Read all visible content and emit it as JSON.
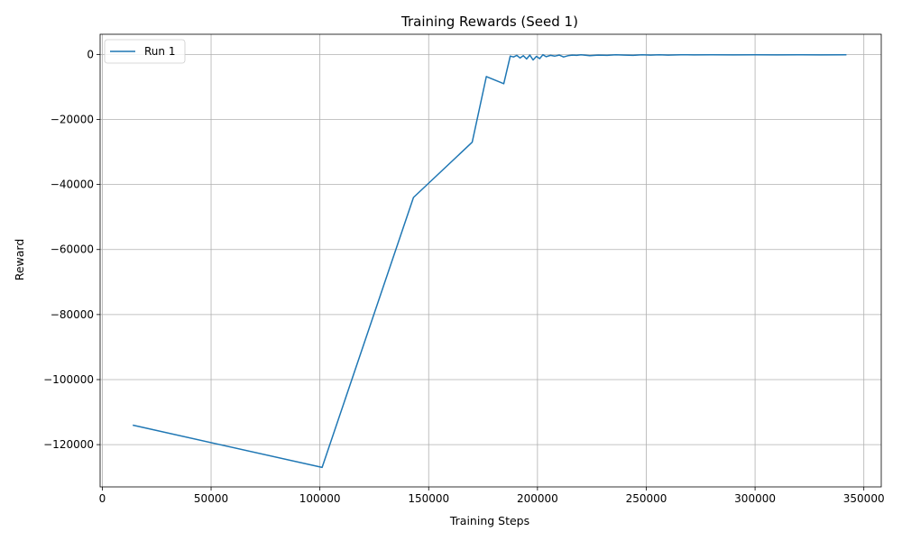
{
  "chart_data": {
    "type": "line",
    "title": "Training Rewards (Seed 1)",
    "xlabel": "Training Steps",
    "ylabel": "Reward",
    "xlim": [
      -1000,
      358000
    ],
    "ylim": [
      -133000,
      6200
    ],
    "xticks": [
      0,
      50000,
      100000,
      150000,
      200000,
      250000,
      300000,
      350000
    ],
    "xtick_labels": [
      "0",
      "50000",
      "100000",
      "150000",
      "200000",
      "250000",
      "300000",
      "350000"
    ],
    "yticks": [
      0,
      -20000,
      -40000,
      -60000,
      -80000,
      -100000,
      -120000
    ],
    "ytick_labels": [
      "0",
      "−20000",
      "−40000",
      "−60000",
      "−80000",
      "−100000",
      "−120000"
    ],
    "grid": true,
    "legend_position": "upper-left",
    "color": "#1f77b4",
    "series": [
      {
        "name": "Run 1",
        "x": [
          14000,
          101000,
          143000,
          170000,
          176500,
          184500,
          187500,
          189000,
          190500,
          192000,
          193500,
          195000,
          196500,
          198000,
          199500,
          201000,
          202500,
          204000,
          206000,
          208000,
          210000,
          212000,
          214000,
          216000,
          218000,
          220000,
          224000,
          228000,
          232000,
          236000,
          240000,
          244000,
          248000,
          252000,
          256000,
          260000,
          266000,
          272000,
          280000,
          290000,
          300000,
          310000,
          320000,
          330000,
          342000
        ],
        "y": [
          -114000,
          -127000,
          -44000,
          -27000,
          -6800,
          -9000,
          -500,
          -800,
          -300,
          -1100,
          -400,
          -1400,
          -200,
          -1700,
          -600,
          -1300,
          -100,
          -700,
          -300,
          -500,
          -200,
          -800,
          -400,
          -200,
          -300,
          -100,
          -400,
          -200,
          -300,
          -100,
          -200,
          -300,
          -100,
          -200,
          -100,
          -200,
          -100,
          -150,
          -100,
          -150,
          -100,
          -150,
          -100,
          -150,
          -100
        ]
      }
    ]
  }
}
